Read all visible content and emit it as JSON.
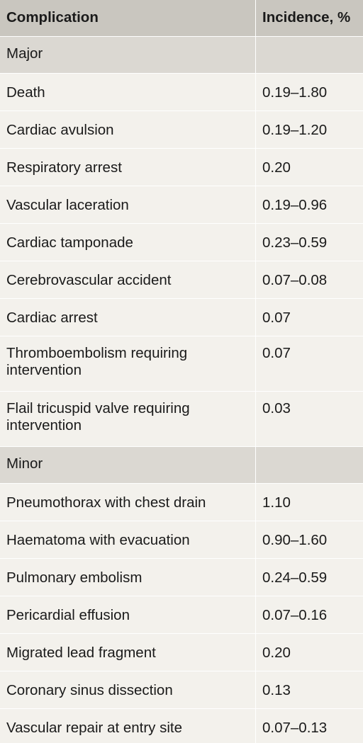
{
  "header": {
    "complication": "Complication",
    "incidence": "Incidence, %"
  },
  "sections": [
    {
      "label": "Major",
      "rows": [
        {
          "complication": "Death",
          "incidence": "0.19–1.80"
        },
        {
          "complication": "Cardiac avulsion",
          "incidence": "0.19–1.20"
        },
        {
          "complication": "Respiratory arrest",
          "incidence": "0.20"
        },
        {
          "complication": "Vascular laceration",
          "incidence": "0.19–0.96"
        },
        {
          "complication": "Cardiac tamponade",
          "incidence": "0.23–0.59"
        },
        {
          "complication": "Cerebrovascular accident",
          "incidence": "0.07–0.08"
        },
        {
          "complication": "Cardiac arrest",
          "incidence": "0.07"
        },
        {
          "complication": "Thromboembolism requiring intervention",
          "incidence": "0.07"
        },
        {
          "complication": "Flail tricuspid valve requiring intervention",
          "incidence": "0.03"
        }
      ]
    },
    {
      "label": "Minor",
      "rows": [
        {
          "complication": "Pneumothorax with chest drain",
          "incidence": "1.10"
        },
        {
          "complication": "Haematoma with evacuation",
          "incidence": "0.90–1.60"
        },
        {
          "complication": "Pulmonary embolism",
          "incidence": "0.24–0.59"
        },
        {
          "complication": "Pericardial effusion",
          "incidence": "0.07–0.16"
        },
        {
          "complication": "Migrated lead fragment",
          "incidence": "0.20"
        },
        {
          "complication": "Coronary sinus dissection",
          "incidence": "0.13"
        },
        {
          "complication": "Vascular repair at entry site",
          "incidence": "0.07–0.13"
        }
      ]
    }
  ]
}
